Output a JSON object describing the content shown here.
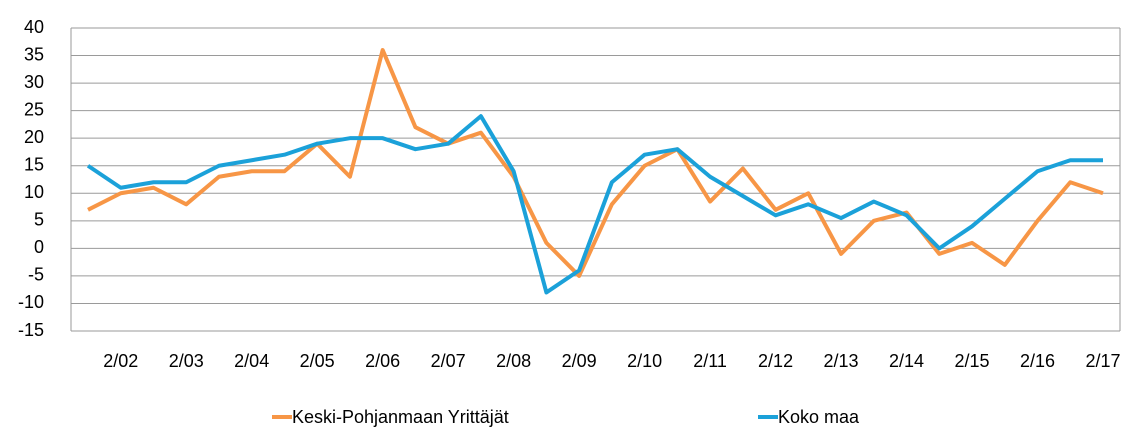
{
  "chart_data": {
    "type": "line",
    "categories": [
      null,
      "2/02",
      null,
      "2/03",
      null,
      "2/04",
      null,
      "2/05",
      null,
      "2/06",
      null,
      "2/07",
      null,
      "2/08",
      null,
      "2/09",
      null,
      "2/10",
      null,
      "2/11",
      null,
      "2/12",
      null,
      "2/13",
      null,
      "2/14",
      null,
      "2/15",
      null,
      "2/16",
      null,
      "2/17"
    ],
    "series": [
      {
        "name": "Keski-Pohjanmaan Yrittäjät",
        "color": "#f79646",
        "values": [
          7,
          10,
          11,
          8,
          13,
          14,
          14,
          19,
          13,
          36,
          22,
          19,
          21,
          13,
          1,
          -5,
          8,
          15,
          18,
          8.5,
          14.5,
          7,
          10,
          -1,
          5,
          6.5,
          -1,
          1,
          -3,
          5,
          12,
          10
        ]
      },
      {
        "name": "Koko maa",
        "color": "#1ba1d9",
        "values": [
          15,
          11,
          12,
          12,
          15,
          16,
          17,
          19,
          20,
          20,
          18,
          19,
          24,
          14,
          -8,
          -4,
          12,
          17,
          18,
          13,
          9.5,
          6,
          8,
          5.5,
          8.5,
          6,
          0,
          4,
          9,
          14,
          16,
          16
        ]
      }
    ],
    "ylim": [
      -15,
      40
    ],
    "yticks": [
      -15,
      -10,
      -5,
      0,
      5,
      10,
      15,
      20,
      25,
      30,
      35,
      40
    ],
    "grid": true,
    "legend": "bottom"
  }
}
